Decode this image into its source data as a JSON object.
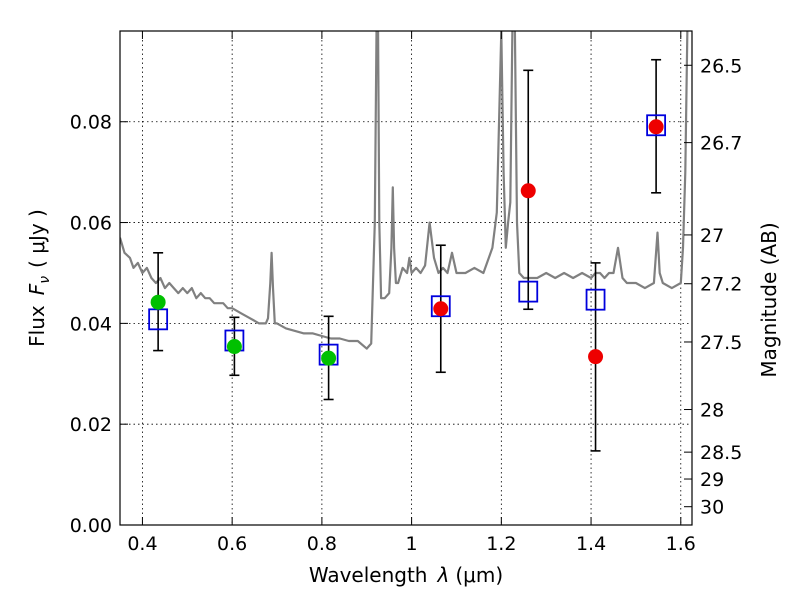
{
  "chart_data": {
    "type": "scatter",
    "xlabel": "Wavelength",
    "xlabel_symbol": "λ",
    "xlabel_unit": "(μm)",
    "ylabel": "Flux",
    "ylabel_symbol": "F",
    "ylabel_subscript": "ν",
    "ylabel_unit": "( μJy )",
    "y2label": "Magnitude (AB)",
    "xlim": [
      0.35,
      1.625
    ],
    "ylim": [
      0.0,
      0.098
    ],
    "grid": true,
    "x_ticks": [
      0.4,
      0.6,
      0.8,
      1.0,
      1.2,
      1.4,
      1.6
    ],
    "x_tick_labels": [
      "0.4",
      "0.6",
      "0.8",
      "1",
      "1.2",
      "1.4",
      "1.6"
    ],
    "y_ticks": [
      0.0,
      0.02,
      0.04,
      0.06,
      0.08
    ],
    "y_tick_labels": [
      "0.00",
      "0.02",
      "0.04",
      "0.06",
      "0.08"
    ],
    "y2_ticks": [
      26.5,
      26.7,
      27,
      27.2,
      27.5,
      28,
      28.5,
      29,
      30
    ],
    "y2_tick_labels": [
      "26.5",
      "26.7",
      "27",
      "27.2",
      "27.5",
      "28",
      "28.5",
      "29",
      "30"
    ],
    "series": [
      {
        "marker": "circle",
        "color": "#00c000",
        "x": [
          0.435,
          0.605,
          0.815
        ],
        "y": [
          0.0442,
          0.0354,
          0.0331
        ],
        "yerr_low": [
          0.0346,
          0.0297,
          0.0249
        ],
        "yerr_high": [
          0.054,
          0.0412,
          0.0414
        ]
      },
      {
        "marker": "circle",
        "color": "#ee0000",
        "x": [
          1.065,
          1.26,
          1.41,
          1.545
        ],
        "y": [
          0.0429,
          0.0663,
          0.0334,
          0.079
        ],
        "yerr_low": [
          0.0303,
          0.0428,
          0.0147,
          0.0659
        ],
        "yerr_high": [
          0.0555,
          0.0902,
          0.052,
          0.0923
        ]
      },
      {
        "marker": "open-square",
        "color": "#0000dd",
        "x": [
          0.435,
          0.605,
          0.815,
          1.065,
          1.26,
          1.41,
          1.545
        ],
        "y": [
          0.0408,
          0.0366,
          0.0338,
          0.0434,
          0.0463,
          0.0447,
          0.0793
        ]
      },
      {
        "type": "line",
        "color": "#808080",
        "x": [
          0.35,
          0.36,
          0.372,
          0.38,
          0.39,
          0.4,
          0.41,
          0.42,
          0.43,
          0.44,
          0.45,
          0.46,
          0.47,
          0.48,
          0.49,
          0.5,
          0.51,
          0.52,
          0.53,
          0.54,
          0.55,
          0.56,
          0.57,
          0.58,
          0.59,
          0.6,
          0.62,
          0.64,
          0.66,
          0.675,
          0.68,
          0.685,
          0.688,
          0.691,
          0.695,
          0.7,
          0.72,
          0.74,
          0.76,
          0.78,
          0.8,
          0.82,
          0.84,
          0.86,
          0.88,
          0.9,
          0.91,
          0.918,
          0.922,
          0.925,
          0.928,
          0.932,
          0.94,
          0.95,
          0.955,
          0.958,
          0.961,
          0.965,
          0.97,
          0.98,
          0.99,
          0.995,
          1.0,
          1.01,
          1.02,
          1.03,
          1.04,
          1.05,
          1.06,
          1.07,
          1.08,
          1.09,
          1.1,
          1.12,
          1.14,
          1.16,
          1.18,
          1.19,
          1.2,
          1.205,
          1.21,
          1.215,
          1.22,
          1.225,
          1.23,
          1.235,
          1.24,
          1.25,
          1.26,
          1.28,
          1.3,
          1.32,
          1.34,
          1.36,
          1.38,
          1.4,
          1.41,
          1.42,
          1.43,
          1.44,
          1.45,
          1.46,
          1.47,
          1.48,
          1.5,
          1.52,
          1.54,
          1.548,
          1.553,
          1.56,
          1.58,
          1.6,
          1.605,
          1.61,
          1.615,
          1.62,
          1.625
        ],
        "y": [
          0.057,
          0.054,
          0.053,
          0.051,
          0.052,
          0.05,
          0.051,
          0.049,
          0.048,
          0.049,
          0.047,
          0.048,
          0.047,
          0.046,
          0.047,
          0.046,
          0.047,
          0.045,
          0.046,
          0.045,
          0.045,
          0.044,
          0.044,
          0.044,
          0.043,
          0.043,
          0.042,
          0.041,
          0.04,
          0.04,
          0.041,
          0.048,
          0.054,
          0.047,
          0.04,
          0.04,
          0.039,
          0.0385,
          0.038,
          0.038,
          0.0375,
          0.037,
          0.037,
          0.0365,
          0.0365,
          0.035,
          0.036,
          0.06,
          0.1,
          0.1,
          0.06,
          0.045,
          0.045,
          0.046,
          0.055,
          0.067,
          0.055,
          0.048,
          0.048,
          0.051,
          0.05,
          0.053,
          0.05,
          0.051,
          0.05,
          0.0515,
          0.06,
          0.053,
          0.05,
          0.051,
          0.05,
          0.054,
          0.05,
          0.05,
          0.051,
          0.05,
          0.055,
          0.062,
          0.098,
          0.07,
          0.055,
          0.06,
          0.064,
          0.1,
          0.1,
          0.06,
          0.05,
          0.049,
          0.049,
          0.049,
          0.05,
          0.049,
          0.05,
          0.049,
          0.05,
          0.049,
          0.05,
          0.05,
          0.049,
          0.05,
          0.05,
          0.055,
          0.049,
          0.048,
          0.048,
          0.047,
          0.048,
          0.058,
          0.05,
          0.048,
          0.047,
          0.048,
          0.055,
          0.07,
          0.1,
          0.1,
          0.1
        ]
      }
    ]
  }
}
